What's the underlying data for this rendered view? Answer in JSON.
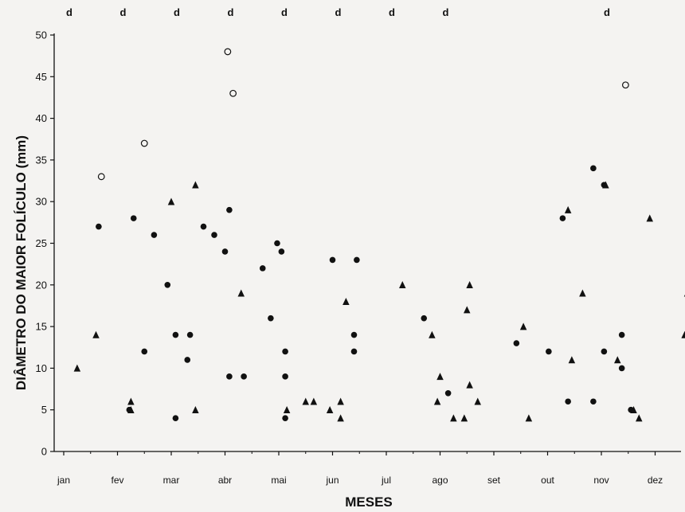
{
  "chart_data": {
    "type": "scatter",
    "title": "",
    "xlabel": "MESES",
    "ylabel": "DIÂMETRO DO MAIOR FOLÍCULO (mm)",
    "ylim": [
      0,
      50
    ],
    "yticks": [
      0,
      5,
      10,
      15,
      20,
      25,
      30,
      35,
      40,
      45,
      50
    ],
    "months": [
      "jan",
      "fev",
      "mar",
      "abr",
      "mai",
      "jun",
      "jul",
      "ago",
      "set",
      "out",
      "nov",
      "dez"
    ],
    "xlim": [
      0,
      11.6
    ],
    "grid": false,
    "legend": "none",
    "marker_label": "d",
    "marker_positions": [
      0,
      1,
      2,
      3,
      4,
      5,
      6,
      7,
      10
    ],
    "series": [
      {
        "marker": "filled-circle",
        "points": [
          {
            "x": 0.65,
            "y": 27
          },
          {
            "x": 1.3,
            "y": 28
          },
          {
            "x": 1.22,
            "y": 5
          },
          {
            "x": 1.5,
            "y": 12
          },
          {
            "x": 1.68,
            "y": 26
          },
          {
            "x": 1.93,
            "y": 20
          },
          {
            "x": 2.08,
            "y": 14
          },
          {
            "x": 2.08,
            "y": 4
          },
          {
            "x": 2.3,
            "y": 11
          },
          {
            "x": 2.35,
            "y": 14
          },
          {
            "x": 2.6,
            "y": 27
          },
          {
            "x": 2.8,
            "y": 26
          },
          {
            "x": 3.0,
            "y": 24
          },
          {
            "x": 3.08,
            "y": 29
          },
          {
            "x": 3.08,
            "y": 9
          },
          {
            "x": 3.35,
            "y": 9
          },
          {
            "x": 3.7,
            "y": 22
          },
          {
            "x": 3.85,
            "y": 16
          },
          {
            "x": 3.97,
            "y": 25
          },
          {
            "x": 4.05,
            "y": 24
          },
          {
            "x": 4.12,
            "y": 12
          },
          {
            "x": 4.12,
            "y": 9
          },
          {
            "x": 4.12,
            "y": 4
          },
          {
            "x": 5.0,
            "y": 23
          },
          {
            "x": 5.4,
            "y": 14
          },
          {
            "x": 5.4,
            "y": 12
          },
          {
            "x": 5.45,
            "y": 23
          },
          {
            "x": 6.7,
            "y": 16
          },
          {
            "x": 7.15,
            "y": 7
          },
          {
            "x": 8.42,
            "y": 13
          },
          {
            "x": 9.02,
            "y": 12
          },
          {
            "x": 9.28,
            "y": 28
          },
          {
            "x": 9.38,
            "y": 6
          },
          {
            "x": 9.85,
            "y": 34
          },
          {
            "x": 9.85,
            "y": 6
          },
          {
            "x": 10.05,
            "y": 32
          },
          {
            "x": 10.05,
            "y": 12
          },
          {
            "x": 10.38,
            "y": 14
          },
          {
            "x": 10.38,
            "y": 10
          },
          {
            "x": 10.55,
            "y": 5
          }
        ]
      },
      {
        "marker": "filled-triangle",
        "points": [
          {
            "x": 0.25,
            "y": 10
          },
          {
            "x": 0.6,
            "y": 14
          },
          {
            "x": 1.25,
            "y": 6
          },
          {
            "x": 1.25,
            "y": 5
          },
          {
            "x": 2.0,
            "y": 30
          },
          {
            "x": 2.45,
            "y": 32
          },
          {
            "x": 2.45,
            "y": 5
          },
          {
            "x": 3.3,
            "y": 19
          },
          {
            "x": 4.15,
            "y": 5
          },
          {
            "x": 4.5,
            "y": 6
          },
          {
            "x": 4.65,
            "y": 6
          },
          {
            "x": 4.95,
            "y": 5
          },
          {
            "x": 5.15,
            "y": 4
          },
          {
            "x": 5.15,
            "y": 6
          },
          {
            "x": 5.25,
            "y": 18
          },
          {
            "x": 6.3,
            "y": 20
          },
          {
            "x": 6.85,
            "y": 14
          },
          {
            "x": 6.95,
            "y": 6
          },
          {
            "x": 7.0,
            "y": 9
          },
          {
            "x": 7.25,
            "y": 4
          },
          {
            "x": 7.45,
            "y": 4
          },
          {
            "x": 7.5,
            "y": 17
          },
          {
            "x": 7.55,
            "y": 20
          },
          {
            "x": 7.55,
            "y": 8
          },
          {
            "x": 7.7,
            "y": 6
          },
          {
            "x": 8.55,
            "y": 15
          },
          {
            "x": 8.65,
            "y": 4
          },
          {
            "x": 9.38,
            "y": 29
          },
          {
            "x": 9.45,
            "y": 11
          },
          {
            "x": 9.65,
            "y": 19
          },
          {
            "x": 10.08,
            "y": 32
          },
          {
            "x": 10.3,
            "y": 11
          },
          {
            "x": 10.6,
            "y": 5
          },
          {
            "x": 10.7,
            "y": 4
          },
          {
            "x": 10.9,
            "y": 28
          },
          {
            "x": 11.55,
            "y": 14
          },
          {
            "x": 11.6,
            "y": 19
          }
        ]
      },
      {
        "marker": "open-circle",
        "points": [
          {
            "x": 0.7,
            "y": 33
          },
          {
            "x": 1.5,
            "y": 37
          },
          {
            "x": 3.05,
            "y": 48
          },
          {
            "x": 3.15,
            "y": 43
          },
          {
            "x": 10.45,
            "y": 44
          }
        ]
      }
    ]
  }
}
